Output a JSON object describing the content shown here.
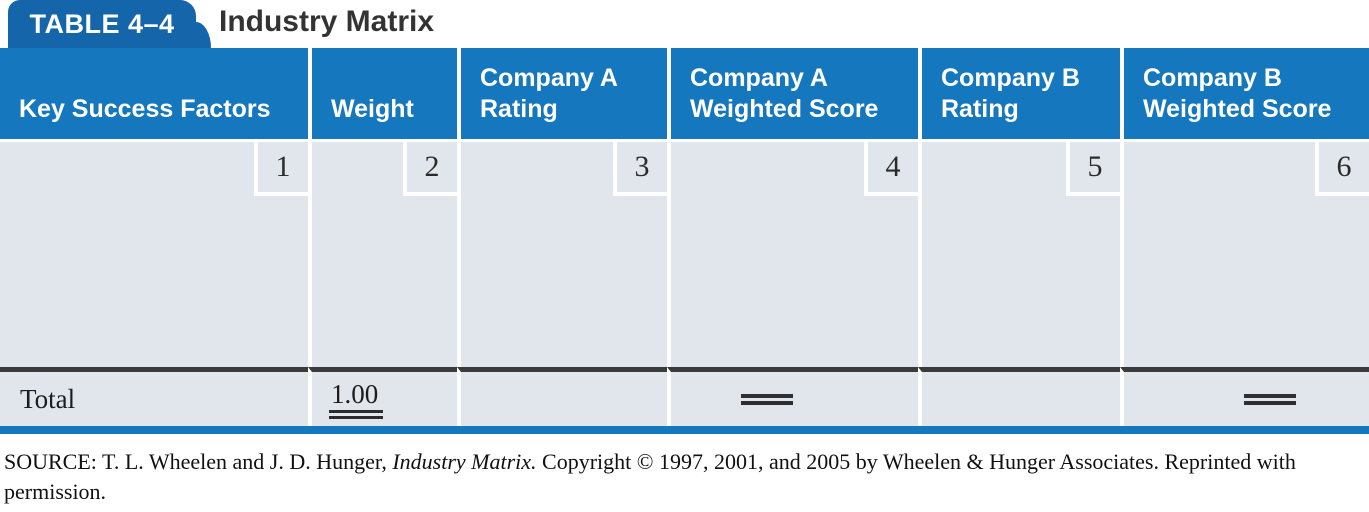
{
  "page": {
    "tab_label": "TABLE 4–4",
    "title": "Industry Matrix"
  },
  "colors": {
    "tab_blue": "#1565ab",
    "header_blue": "#1577bd",
    "body_background": "#e0e6ec",
    "rule_dark": "#3b3b3b"
  },
  "table": {
    "columns": [
      {
        "lines": [
          "Key Success Factors"
        ],
        "num": "1"
      },
      {
        "lines": [
          "Weight"
        ],
        "num": "2"
      },
      {
        "lines": [
          "Company A",
          "Rating"
        ],
        "num": "3"
      },
      {
        "lines": [
          "Company A",
          "Weighted Score"
        ],
        "num": "4"
      },
      {
        "lines": [
          "Company B",
          "Rating"
        ],
        "num": "5"
      },
      {
        "lines": [
          "Company B",
          "Weighted Score"
        ],
        "num": "6"
      }
    ],
    "total_row": {
      "label": "Total",
      "weight_total": "1.00"
    }
  },
  "source": {
    "prefix": "SOURCE: T. L. Wheelen and J. D. Hunger, ",
    "work_title": "Industry Matrix.",
    "suffix": " Copyright © 1997, 2001, and 2005 by Wheelen & Hunger Associates. Reprinted with permission."
  }
}
